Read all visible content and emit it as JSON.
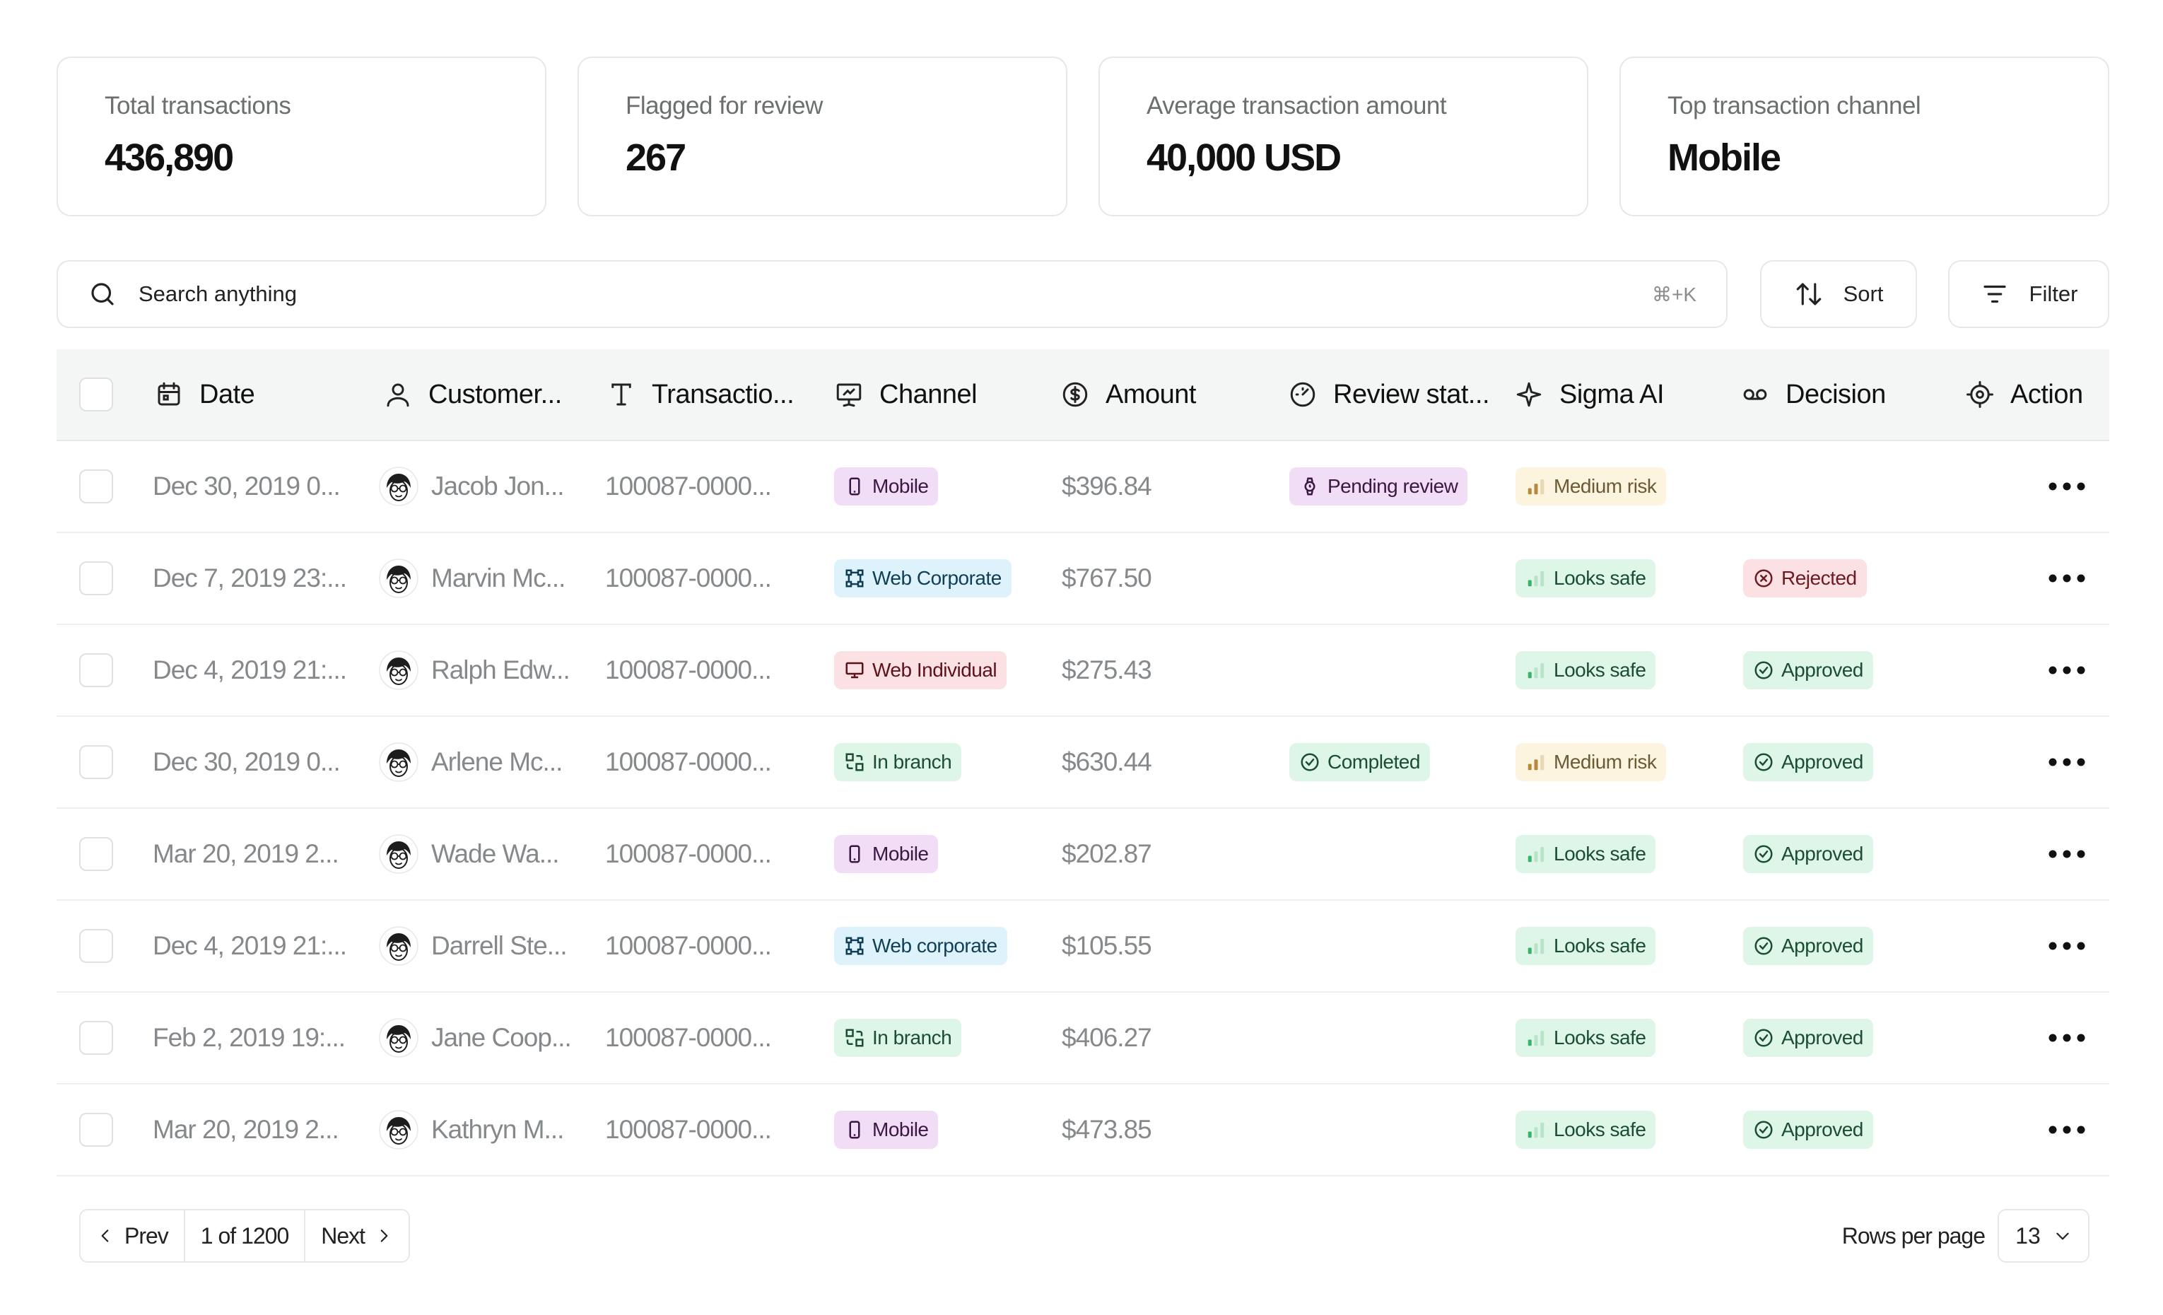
{
  "stats": [
    {
      "label": "Total transactions",
      "value": "436,890"
    },
    {
      "label": "Flagged for review",
      "value": "267"
    },
    {
      "label": "Average transaction amount",
      "value": "40,000 USD"
    },
    {
      "label": "Top transaction channel",
      "value": "Mobile"
    }
  ],
  "search": {
    "placeholder": "Search anything",
    "shortcut": "⌘+K"
  },
  "toolbar": {
    "sort_label": "Sort",
    "filter_label": "Filter"
  },
  "table": {
    "columns": {
      "date": "Date",
      "customer": "Customer...",
      "transaction": "Transactio...",
      "channel": "Channel",
      "amount": "Amount",
      "review": "Review stat...",
      "ai": "Sigma AI",
      "decision": "Decision",
      "action": "Action"
    },
    "rows": [
      {
        "date": "Dec 30, 2019 0...",
        "customer": "Jacob Jon...",
        "txn": "100087-0000...",
        "channel": "Mobile",
        "channel_kind": "mobile",
        "amount": "$396.84",
        "review": "Pending review",
        "review_kind": "pending",
        "ai": "Medium risk",
        "ai_kind": "medium",
        "decision": "",
        "decision_kind": ""
      },
      {
        "date": "Dec 7, 2019 23:...",
        "customer": "Marvin Mc...",
        "txn": "100087-0000...",
        "channel": "Web Corporate",
        "channel_kind": "corp",
        "amount": "$767.50",
        "review": "",
        "review_kind": "",
        "ai": "Looks safe",
        "ai_kind": "safe",
        "decision": "Rejected",
        "decision_kind": "rejected"
      },
      {
        "date": "Dec 4, 2019 21:...",
        "customer": "Ralph Edw...",
        "txn": "100087-0000...",
        "channel": "Web Individual",
        "channel_kind": "individual",
        "amount": "$275.43",
        "review": "",
        "review_kind": "",
        "ai": "Looks safe",
        "ai_kind": "safe",
        "decision": "Approved",
        "decision_kind": "approved"
      },
      {
        "date": "Dec 30, 2019 0...",
        "customer": "Arlene Mc...",
        "txn": "100087-0000...",
        "channel": "In branch",
        "channel_kind": "branch",
        "amount": "$630.44",
        "review": "Completed",
        "review_kind": "completed",
        "ai": "Medium risk",
        "ai_kind": "medium",
        "decision": "Approved",
        "decision_kind": "approved"
      },
      {
        "date": "Mar 20, 2019 2...",
        "customer": "Wade Wa...",
        "txn": "100087-0000...",
        "channel": "Mobile",
        "channel_kind": "mobile",
        "amount": "$202.87",
        "review": "",
        "review_kind": "",
        "ai": "Looks safe",
        "ai_kind": "safe",
        "decision": "Approved",
        "decision_kind": "approved"
      },
      {
        "date": "Dec 4, 2019 21:...",
        "customer": "Darrell Ste...",
        "txn": "100087-0000...",
        "channel": "Web corporate",
        "channel_kind": "corp",
        "amount": "$105.55",
        "review": "",
        "review_kind": "",
        "ai": "Looks safe",
        "ai_kind": "safe",
        "decision": "Approved",
        "decision_kind": "approved"
      },
      {
        "date": "Feb 2, 2019 19:...",
        "customer": "Jane Coop...",
        "txn": "100087-0000...",
        "channel": "In branch",
        "channel_kind": "branch",
        "amount": "$406.27",
        "review": "",
        "review_kind": "",
        "ai": "Looks safe",
        "ai_kind": "safe",
        "decision": "Approved",
        "decision_kind": "approved"
      },
      {
        "date": "Mar 20, 2019 2...",
        "customer": "Kathryn M...",
        "txn": "100087-0000...",
        "channel": "Mobile",
        "channel_kind": "mobile",
        "amount": "$473.85",
        "review": "",
        "review_kind": "",
        "ai": "Looks safe",
        "ai_kind": "safe",
        "decision": "Approved",
        "decision_kind": "approved"
      }
    ]
  },
  "pagination": {
    "prev_label": "Prev",
    "page_info": "1 of 1200",
    "next_label": "Next",
    "rows_per_page_label": "Rows per page",
    "rows_per_page_value": "13"
  }
}
